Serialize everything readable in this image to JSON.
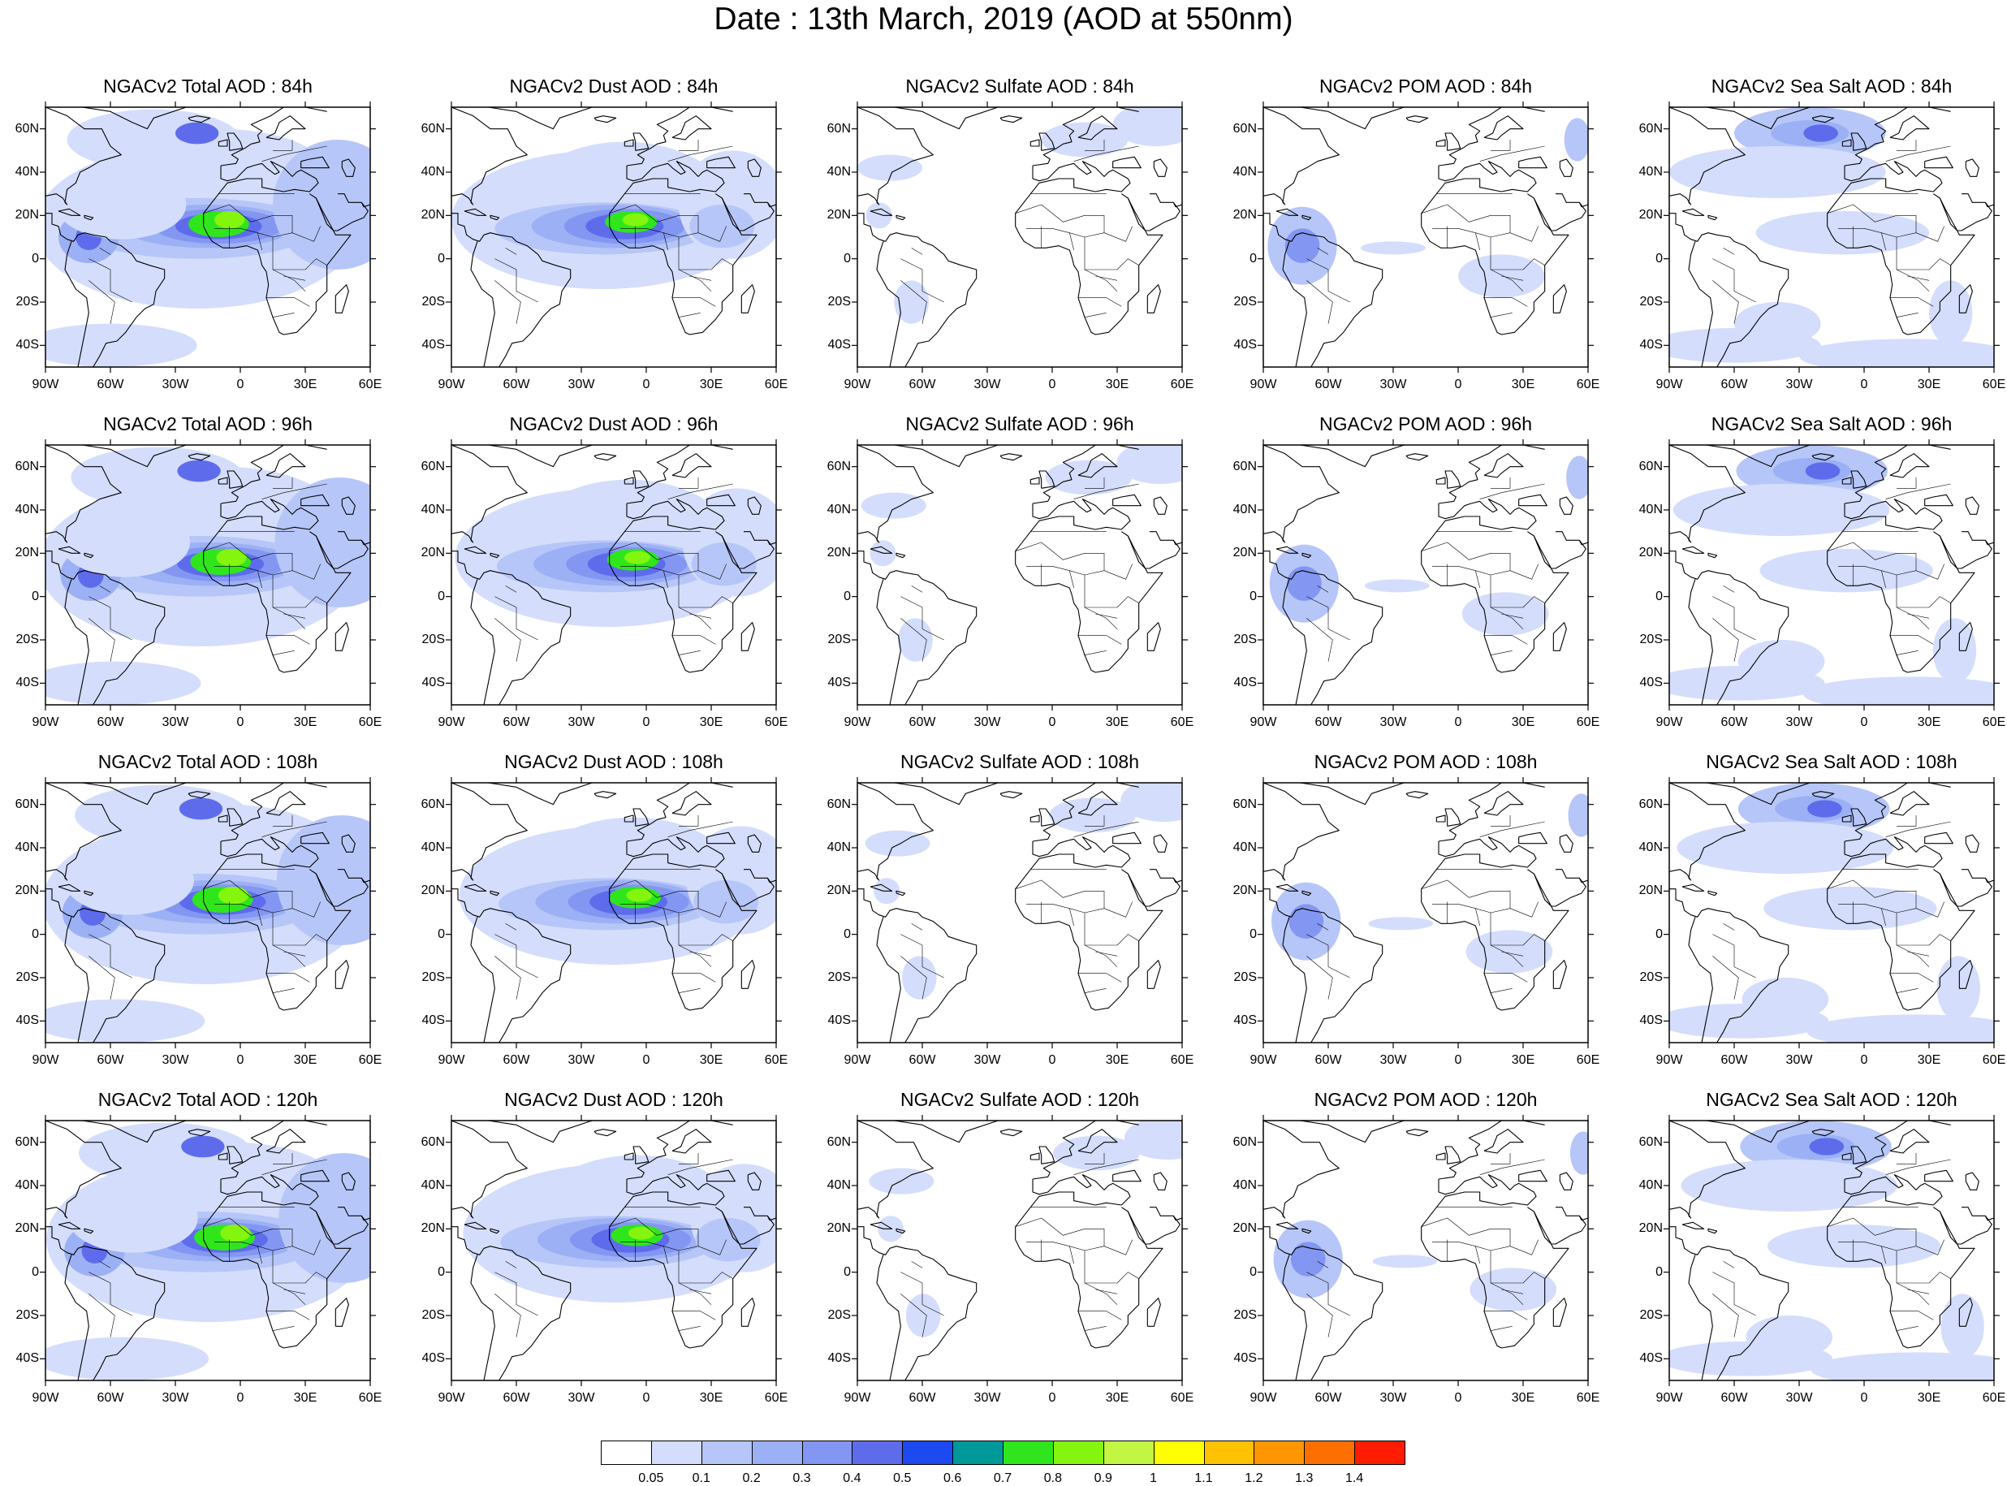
{
  "title": "Date : 13th March, 2019 (AOD at 550nm)",
  "panels": [
    {
      "title": "NGACv2 Total AOD : 84h",
      "species": "total",
      "lead": 84
    },
    {
      "title": "NGACv2 Dust AOD : 84h",
      "species": "dust",
      "lead": 84
    },
    {
      "title": "NGACv2 Sulfate AOD : 84h",
      "species": "sulfate",
      "lead": 84
    },
    {
      "title": "NGACv2 POM AOD : 84h",
      "species": "pom",
      "lead": 84
    },
    {
      "title": "NGACv2 Sea Salt AOD : 84h",
      "species": "seasalt",
      "lead": 84
    },
    {
      "title": "NGACv2 Total AOD : 96h",
      "species": "total",
      "lead": 96
    },
    {
      "title": "NGACv2 Dust AOD : 96h",
      "species": "dust",
      "lead": 96
    },
    {
      "title": "NGACv2 Sulfate AOD : 96h",
      "species": "sulfate",
      "lead": 96
    },
    {
      "title": "NGACv2 POM AOD : 96h",
      "species": "pom",
      "lead": 96
    },
    {
      "title": "NGACv2 Sea Salt AOD : 96h",
      "species": "seasalt",
      "lead": 96
    },
    {
      "title": "NGACv2 Total AOD : 108h",
      "species": "total",
      "lead": 108
    },
    {
      "title": "NGACv2 Dust AOD : 108h",
      "species": "dust",
      "lead": 108
    },
    {
      "title": "NGACv2 Sulfate AOD : 108h",
      "species": "sulfate",
      "lead": 108
    },
    {
      "title": "NGACv2 POM AOD : 108h",
      "species": "pom",
      "lead": 108
    },
    {
      "title": "NGACv2 Sea Salt AOD : 108h",
      "species": "seasalt",
      "lead": 108
    },
    {
      "title": "NGACv2 Total AOD : 120h",
      "species": "total",
      "lead": 120
    },
    {
      "title": "NGACv2 Dust AOD : 120h",
      "species": "dust",
      "lead": 120
    },
    {
      "title": "NGACv2 Sulfate AOD : 120h",
      "species": "sulfate",
      "lead": 120
    },
    {
      "title": "NGACv2 POM AOD : 120h",
      "species": "pom",
      "lead": 120
    },
    {
      "title": "NGACv2 Sea Salt  AOD : 120h",
      "species": "seasalt",
      "lead": 120
    }
  ],
  "lat_labels": [
    "60N",
    "40N",
    "20N",
    "0",
    "20S",
    "40S"
  ],
  "lat_values": [
    60,
    40,
    20,
    0,
    -20,
    -40
  ],
  "lon_labels": [
    "90W",
    "60W",
    "30W",
    "0",
    "30E",
    "60E"
  ],
  "lon_values": [
    -90,
    -60,
    -30,
    0,
    30,
    60
  ],
  "domain": {
    "lon_range": [
      -90,
      60
    ],
    "lat_range": [
      -50,
      70
    ]
  },
  "colorbar": {
    "levels": [
      "0.05",
      "0.1",
      "0.2",
      "0.3",
      "0.4",
      "0.5",
      "0.6",
      "0.7",
      "0.8",
      "0.9",
      "1",
      "1.1",
      "1.2",
      "1.3",
      "1.4"
    ],
    "colors": [
      "#ffffff",
      "#d4ddfb",
      "#b7c6f8",
      "#9cb0f5",
      "#8396f2",
      "#5e6cec",
      "#1c4af0",
      "#00999a",
      "#2fe61d",
      "#84f50f",
      "#c3f543",
      "#ffff00",
      "#ffc200",
      "#ff9600",
      "#ff6f00",
      "#ff1c00"
    ]
  },
  "colors": {
    "coast": "#000000",
    "blobs": [
      "#d4ddfb",
      "#b7c6f8",
      "#9cb0f5",
      "#8396f2",
      "#5e6cec",
      "#2fe61d",
      "#84f50f"
    ]
  }
}
